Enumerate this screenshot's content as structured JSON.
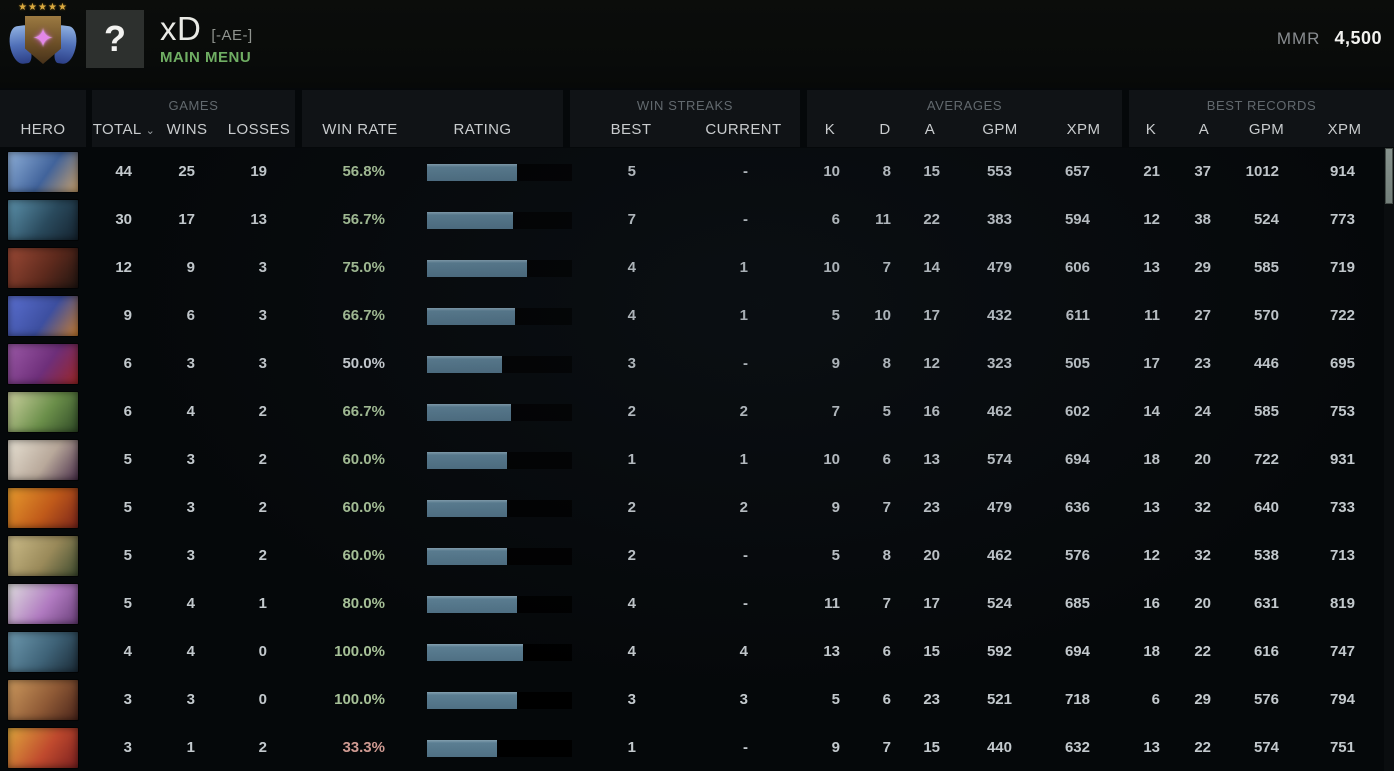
{
  "profile": {
    "name": "xD",
    "tag": "[-AE-]",
    "menu": "MAIN MENU",
    "avatar_text": "?",
    "rank_stars": "★★★★★",
    "medal_gem": "✦",
    "mmr_label": "MMR",
    "mmr_value": "4,500"
  },
  "table": {
    "groups": {
      "games": "GAMES",
      "win_streaks": "WIN STREAKS",
      "averages": "AVERAGES",
      "best_records": "BEST RECORDS"
    },
    "columns": {
      "hero": "HERO",
      "total": "TOTAL",
      "sort_caret": "⌄",
      "wins": "WINS",
      "losses": "LOSSES",
      "win_rate": "WIN RATE",
      "rating": "RATING",
      "best": "BEST",
      "current": "CURRENT",
      "k": "K",
      "d": "D",
      "a": "A",
      "gpm": "GPM",
      "xpm": "XPM"
    },
    "colors": {
      "win_positive": "#a6c097",
      "win_neutral": "#cdd2d6",
      "win_negative": "#cf9a92",
      "bar_fill": "#56788c",
      "bar_track": "#000000"
    },
    "rows": [
      {
        "portrait": [
          "#8fb0d9",
          "#41639b",
          "#c9a06b"
        ],
        "total": "44",
        "wins": "25",
        "losses": "19",
        "win_rate": "56.8%",
        "rating_pct": 62,
        "best": "5",
        "current": "-",
        "k": "10",
        "d": "8",
        "a": "15",
        "gpm": "553",
        "xpm": "657",
        "bk": "21",
        "ba": "37",
        "bgpm": "1012",
        "bxpm": "914"
      },
      {
        "portrait": [
          "#5d93ad",
          "#2a4a5d",
          "#14222e"
        ],
        "total": "30",
        "wins": "17",
        "losses": "13",
        "win_rate": "56.7%",
        "rating_pct": 59,
        "best": "7",
        "current": "-",
        "k": "6",
        "d": "11",
        "a": "22",
        "gpm": "383",
        "xpm": "594",
        "bk": "12",
        "ba": "38",
        "bgpm": "524",
        "bxpm": "773"
      },
      {
        "portrait": [
          "#9c4a36",
          "#5e2a1d",
          "#1f1410"
        ],
        "total": "12",
        "wins": "9",
        "losses": "3",
        "win_rate": "75.0%",
        "rating_pct": 69,
        "best": "4",
        "current": "1",
        "k": "10",
        "d": "7",
        "a": "14",
        "gpm": "479",
        "xpm": "606",
        "bk": "13",
        "ba": "29",
        "bgpm": "585",
        "bxpm": "719"
      },
      {
        "portrait": [
          "#5a6fd0",
          "#3d4fa0",
          "#c87c2e"
        ],
        "total": "9",
        "wins": "6",
        "losses": "3",
        "win_rate": "66.7%",
        "rating_pct": 61,
        "best": "4",
        "current": "1",
        "k": "5",
        "d": "10",
        "a": "17",
        "gpm": "432",
        "xpm": "611",
        "bk": "11",
        "ba": "27",
        "bgpm": "570",
        "bxpm": "722"
      },
      {
        "portrait": [
          "#9c5aa8",
          "#6e2f7a",
          "#9c2626"
        ],
        "total": "6",
        "wins": "3",
        "losses": "3",
        "win_rate": "50.0%",
        "rating_pct": 52,
        "best": "3",
        "current": "-",
        "k": "9",
        "d": "8",
        "a": "12",
        "gpm": "323",
        "xpm": "505",
        "bk": "17",
        "ba": "23",
        "bgpm": "446",
        "bxpm": "695"
      },
      {
        "portrait": [
          "#cdd2a0",
          "#6b8f4a",
          "#2f4a26"
        ],
        "total": "6",
        "wins": "4",
        "losses": "2",
        "win_rate": "66.7%",
        "rating_pct": 58,
        "best": "2",
        "current": "2",
        "k": "7",
        "d": "5",
        "a": "16",
        "gpm": "462",
        "xpm": "602",
        "bk": "14",
        "ba": "24",
        "bgpm": "585",
        "bxpm": "753"
      },
      {
        "portrait": [
          "#e8e2d4",
          "#b8a89a",
          "#4a2f4a"
        ],
        "total": "5",
        "wins": "3",
        "losses": "2",
        "win_rate": "60.0%",
        "rating_pct": 55,
        "best": "1",
        "current": "1",
        "k": "10",
        "d": "6",
        "a": "13",
        "gpm": "574",
        "xpm": "694",
        "bk": "18",
        "ba": "20",
        "bgpm": "722",
        "bxpm": "931"
      },
      {
        "portrait": [
          "#e89c2e",
          "#c05a1a",
          "#7a241a"
        ],
        "total": "5",
        "wins": "3",
        "losses": "2",
        "win_rate": "60.0%",
        "rating_pct": 55,
        "best": "2",
        "current": "2",
        "k": "9",
        "d": "7",
        "a": "23",
        "gpm": "479",
        "xpm": "636",
        "bk": "13",
        "ba": "32",
        "bgpm": "640",
        "bxpm": "733"
      },
      {
        "portrait": [
          "#cdbd8a",
          "#9a8a5a",
          "#3d4a2e"
        ],
        "total": "5",
        "wins": "3",
        "losses": "2",
        "win_rate": "60.0%",
        "rating_pct": 55,
        "best": "2",
        "current": "-",
        "k": "5",
        "d": "8",
        "a": "20",
        "gpm": "462",
        "xpm": "576",
        "bk": "12",
        "ba": "32",
        "bgpm": "538",
        "bxpm": "713"
      },
      {
        "portrait": [
          "#e0e0e0",
          "#b07ac0",
          "#6a3f7a"
        ],
        "total": "5",
        "wins": "4",
        "losses": "1",
        "win_rate": "80.0%",
        "rating_pct": 62,
        "best": "4",
        "current": "-",
        "k": "11",
        "d": "7",
        "a": "17",
        "gpm": "524",
        "xpm": "685",
        "bk": "16",
        "ba": "20",
        "bgpm": "631",
        "bxpm": "819"
      },
      {
        "portrait": [
          "#6e9ab0",
          "#3f6378",
          "#1a2a36"
        ],
        "total": "4",
        "wins": "4",
        "losses": "0",
        "win_rate": "100.0%",
        "rating_pct": 66,
        "best": "4",
        "current": "4",
        "k": "13",
        "d": "6",
        "a": "15",
        "gpm": "592",
        "xpm": "694",
        "bk": "18",
        "ba": "22",
        "bgpm": "616",
        "bxpm": "747"
      },
      {
        "portrait": [
          "#cd9a5e",
          "#8f5a36",
          "#4a241a"
        ],
        "total": "3",
        "wins": "3",
        "losses": "0",
        "win_rate": "100.0%",
        "rating_pct": 62,
        "best": "3",
        "current": "3",
        "k": "5",
        "d": "6",
        "a": "23",
        "gpm": "521",
        "xpm": "718",
        "bk": "6",
        "ba": "29",
        "bgpm": "576",
        "bxpm": "794"
      },
      {
        "portrait": [
          "#e0a83d",
          "#c04a2e",
          "#7a1f1f"
        ],
        "total": "3",
        "wins": "1",
        "losses": "2",
        "win_rate": "33.3%",
        "rating_pct": 48,
        "best": "1",
        "current": "-",
        "k": "9",
        "d": "7",
        "a": "15",
        "gpm": "440",
        "xpm": "632",
        "bk": "13",
        "ba": "22",
        "bgpm": "574",
        "bxpm": "751"
      }
    ]
  }
}
